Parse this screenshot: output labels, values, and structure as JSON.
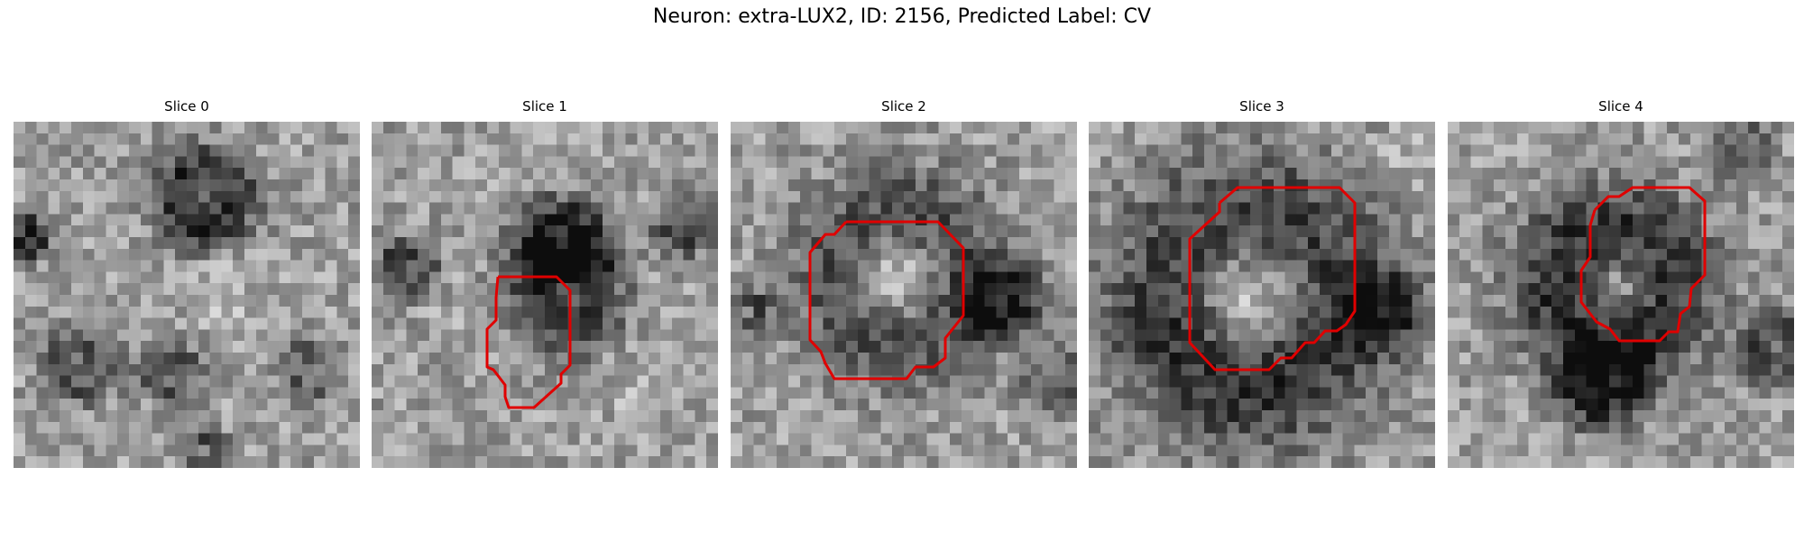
{
  "figure": {
    "title": "Neuron: extra-LUX2, ID: 2156, Predicted Label: CV"
  },
  "contour_color": "#e00000",
  "slices": [
    {
      "label": "Slice 0",
      "has_contour": false
    },
    {
      "label": "Slice 1",
      "has_contour": true
    },
    {
      "label": "Slice 2",
      "has_contour": true
    },
    {
      "label": "Slice 3",
      "has_contour": true
    },
    {
      "label": "Slice 4",
      "has_contour": true
    }
  ]
}
